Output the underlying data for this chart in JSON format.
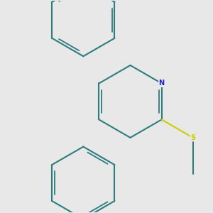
{
  "bg_color": "#e8e8e8",
  "bond_color": "#2d7d7d",
  "N_color": "#2020dd",
  "S_color": "#cccc00",
  "lw": 1.5,
  "dlw": 1.3,
  "shrink": 0.13,
  "doff": 0.055,
  "figsize": [
    3.0,
    3.0
  ],
  "dpi": 100
}
